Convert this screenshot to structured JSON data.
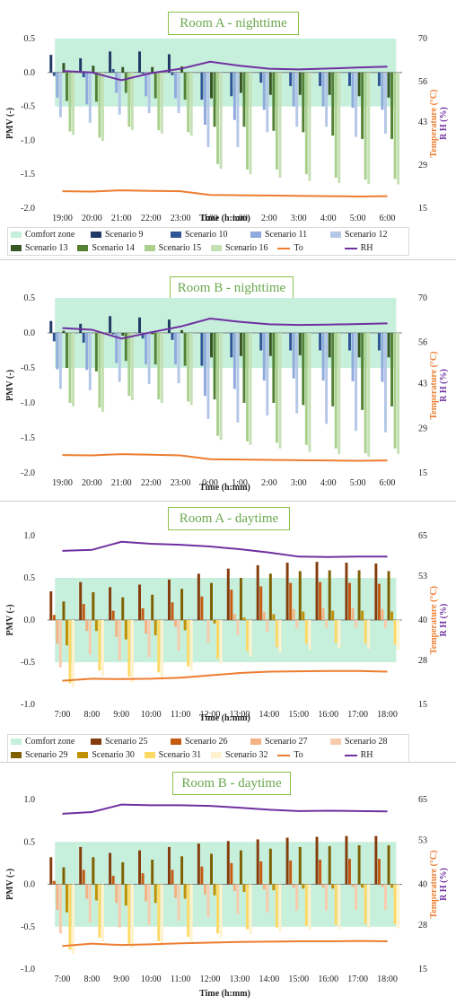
{
  "colors": {
    "night": [
      "#1f3864",
      "#2f5597",
      "#8faadc",
      "#b4c7e7",
      "#375623",
      "#548235",
      "#a9d18e",
      "#c5e0b4"
    ],
    "day": [
      "#843c0c",
      "#c55a11",
      "#f4b183",
      "#f8cbad",
      "#7f6000",
      "#bf9000",
      "#ffd966",
      "#fff2cc"
    ],
    "comfort": "#c6efdc",
    "to": "#ed7d31",
    "rh": "#7030a0"
  },
  "labels": {
    "y_left": "PMV (-)",
    "y_right_temp": "Temperature (°C)",
    "y_right_rh": "R H (%)",
    "x": "Time (h:mm)"
  },
  "legend_night": {
    "comfort": "Comfort zone",
    "series": [
      "Scenario 9",
      "Scenario 10",
      "Scenario 11",
      "Scenario 12",
      "Scenario 13",
      "Scenario 14",
      "Scenario 15",
      "Scenario 16"
    ],
    "to": "To",
    "rh": "RH"
  },
  "legend_day": {
    "comfort": "Comfort zone",
    "series": [
      "Scenario 25",
      "Scenario 26",
      "Scenario 27",
      "Scenario 28",
      "Scenario 29",
      "Scenario 30",
      "Scenario 31",
      "Scenario 32"
    ],
    "to": "To",
    "rh": "RH"
  },
  "chart_data": [
    {
      "type": "bar",
      "title": "Room A - nighttime",
      "categories": [
        "19:00",
        "20:00",
        "21:00",
        "22:00",
        "23:00",
        "0:00",
        "1:00",
        "2:00",
        "3:00",
        "4:00",
        "5:00",
        "6:00"
      ],
      "ylim": [
        -2.0,
        0.5
      ],
      "yticks": [
        "0.5",
        "0.0",
        "-0.5",
        "-1.0",
        "-1.5",
        "-2.0"
      ],
      "right_ylim": [
        15,
        70
      ],
      "right_ticks": [
        "70",
        "56",
        "43",
        "29",
        "15"
      ],
      "comfort_zone": [
        -0.5,
        0.5
      ],
      "series": [
        {
          "name": "Scenario 9",
          "values": [
            0.26,
            0.21,
            0.31,
            0.31,
            0.27,
            0.0,
            0.0,
            0.0,
            0.0,
            0.0,
            0.0,
            0.0
          ]
        },
        {
          "name": "Scenario 10",
          "values": [
            -0.05,
            -0.07,
            0.05,
            -0.02,
            -0.04,
            -0.4,
            -0.35,
            -0.15,
            -0.2,
            -0.2,
            -0.2,
            -0.2
          ]
        },
        {
          "name": "Scenario 11",
          "values": [
            -0.37,
            -0.47,
            -0.3,
            -0.35,
            -0.38,
            -0.77,
            -0.7,
            -0.55,
            -0.5,
            -0.5,
            -0.52,
            -0.55
          ]
        },
        {
          "name": "Scenario 12",
          "values": [
            -0.66,
            -0.74,
            -0.62,
            -0.6,
            -0.6,
            -1.1,
            -1.1,
            -0.88,
            -0.8,
            -0.8,
            -0.95,
            -0.9
          ]
        },
        {
          "name": "Scenario 13",
          "values": [
            0.14,
            0.1,
            0.08,
            0.08,
            0.09,
            -0.38,
            -0.3,
            -0.33,
            -0.33,
            -0.33,
            -0.35,
            -0.37
          ]
        },
        {
          "name": "Scenario 14",
          "values": [
            -0.42,
            -0.43,
            -0.3,
            -0.38,
            -0.4,
            -0.8,
            -0.8,
            -0.86,
            -0.88,
            -0.93,
            -0.98,
            -0.98
          ]
        },
        {
          "name": "Scenario 15",
          "values": [
            -0.87,
            -0.96,
            -0.8,
            -0.85,
            -0.88,
            -1.35,
            -1.43,
            -1.43,
            -1.5,
            -1.55,
            -1.58,
            -1.57
          ]
        },
        {
          "name": "Scenario 16",
          "values": [
            -0.92,
            -1.01,
            -0.85,
            -0.9,
            -0.93,
            -1.42,
            -1.5,
            -1.55,
            -1.6,
            -1.63,
            -1.64,
            -1.65
          ]
        }
      ],
      "to": [
        20.5,
        20.4,
        20.8,
        20.6,
        20.5,
        19.3,
        19.2,
        19.1,
        19.0,
        18.9,
        18.8,
        18.9
      ],
      "rh": [
        59.5,
        59.0,
        56.5,
        58.8,
        60.2,
        62.5,
        61.2,
        60.2,
        60.0,
        60.3,
        60.6,
        60.9
      ]
    },
    {
      "type": "bar",
      "title": "Room B - nighttime",
      "categories": [
        "19:00",
        "20:00",
        "21:00",
        "22:00",
        "23:00",
        "0:00",
        "1:00",
        "2:00",
        "3:00",
        "4:00",
        "5:00",
        "6:00"
      ],
      "ylim": [
        -2.0,
        0.5
      ],
      "yticks": [
        "0.5",
        "0.0",
        "-0.5",
        "-1.0",
        "-1.5",
        "-2.0"
      ],
      "right_ylim": [
        15,
        70
      ],
      "right_ticks": [
        "70",
        "56",
        "43",
        "29",
        "15"
      ],
      "comfort_zone": [
        -0.5,
        0.5
      ],
      "series": [
        {
          "name": "Scenario 9",
          "values": [
            0.17,
            0.13,
            0.24,
            0.22,
            0.19,
            0.0,
            0.0,
            0.0,
            0.0,
            0.0,
            0.0,
            0.0
          ]
        },
        {
          "name": "Scenario 10",
          "values": [
            -0.12,
            -0.14,
            -0.02,
            -0.08,
            -0.1,
            -0.47,
            -0.35,
            -0.25,
            -0.25,
            -0.25,
            -0.25,
            -0.25
          ]
        },
        {
          "name": "Scenario 11",
          "values": [
            -0.52,
            -0.53,
            -0.43,
            -0.45,
            -0.45,
            -0.9,
            -0.8,
            -0.68,
            -0.65,
            -0.68,
            -0.69,
            -0.7
          ]
        },
        {
          "name": "Scenario 12",
          "values": [
            -0.8,
            -0.82,
            -0.7,
            -0.73,
            -0.72,
            -1.23,
            -1.28,
            -1.18,
            -1.15,
            -1.3,
            -1.4,
            -1.42
          ]
        },
        {
          "name": "Scenario 13",
          "values": [
            0.03,
            0.0,
            -0.04,
            -0.02,
            0.04,
            -0.35,
            -0.33,
            -0.33,
            -0.32,
            -0.35,
            -0.35,
            -0.35
          ]
        },
        {
          "name": "Scenario 14",
          "values": [
            -0.5,
            -0.55,
            -0.4,
            -0.45,
            -0.47,
            -0.95,
            -1.0,
            -1.0,
            -1.03,
            -1.05,
            -1.1,
            -1.05
          ]
        },
        {
          "name": "Scenario 15",
          "values": [
            -1.0,
            -1.07,
            -0.9,
            -0.95,
            -0.98,
            -1.47,
            -1.55,
            -1.57,
            -1.6,
            -1.65,
            -1.72,
            -1.65
          ]
        },
        {
          "name": "Scenario 16",
          "values": [
            -1.05,
            -1.13,
            -0.96,
            -1.0,
            -1.03,
            -1.53,
            -1.6,
            -1.65,
            -1.7,
            -1.73,
            -1.77,
            -1.73
          ]
        }
      ],
      "to": [
        20.6,
        20.5,
        20.9,
        20.7,
        20.5,
        19.3,
        19.2,
        19.1,
        19.0,
        18.9,
        18.8,
        18.9
      ],
      "rh": [
        60.5,
        60.0,
        57.2,
        59.2,
        61.0,
        63.5,
        62.5,
        61.7,
        61.5,
        61.6,
        61.8,
        62.0
      ]
    },
    {
      "type": "bar",
      "title": "Room A - daytime",
      "categories": [
        "7:00",
        "8:00",
        "9:00",
        "10:00",
        "11:00",
        "12:00",
        "13:00",
        "14:00",
        "15:00",
        "16:00",
        "17:00",
        "18:00"
      ],
      "ylim": [
        -1.0,
        1.0
      ],
      "yticks": [
        "1.0",
        "0.5",
        "0.0",
        "-0.5",
        "-1.0"
      ],
      "right_ylim": [
        15,
        65
      ],
      "right_ticks": [
        "65",
        "53",
        "40",
        "28",
        "15"
      ],
      "comfort_zone": [
        -0.5,
        0.5
      ],
      "series": [
        {
          "name": "Scenario 25",
          "values": [
            0.34,
            0.45,
            0.39,
            0.42,
            0.48,
            0.55,
            0.61,
            0.65,
            0.68,
            0.69,
            0.68,
            0.67
          ]
        },
        {
          "name": "Scenario 26",
          "values": [
            0.06,
            0.19,
            0.11,
            0.14,
            0.21,
            0.28,
            0.36,
            0.4,
            0.44,
            0.45,
            0.44,
            0.43
          ]
        },
        {
          "name": "Scenario 27",
          "values": [
            -0.28,
            -0.13,
            -0.2,
            -0.16,
            -0.08,
            0.0,
            0.07,
            0.1,
            0.13,
            0.14,
            0.14,
            0.13
          ]
        },
        {
          "name": "Scenario 28",
          "values": [
            -0.56,
            -0.41,
            -0.48,
            -0.44,
            -0.36,
            -0.27,
            -0.18,
            -0.14,
            -0.1,
            -0.09,
            -0.09,
            -0.1
          ]
        },
        {
          "name": "Scenario 29",
          "values": [
            0.22,
            0.33,
            0.27,
            0.3,
            0.37,
            0.44,
            0.5,
            0.55,
            0.58,
            0.59,
            0.59,
            0.58
          ]
        },
        {
          "name": "Scenario 30",
          "values": [
            -0.3,
            -0.13,
            -0.23,
            -0.18,
            -0.12,
            -0.04,
            0.03,
            0.07,
            0.1,
            0.11,
            0.11,
            0.1
          ]
        },
        {
          "name": "Scenario 31",
          "values": [
            -0.75,
            -0.6,
            -0.67,
            -0.62,
            -0.55,
            -0.46,
            -0.37,
            -0.32,
            -0.28,
            -0.27,
            -0.28,
            -0.29
          ]
        },
        {
          "name": "Scenario 32",
          "values": [
            -0.8,
            -0.66,
            -0.74,
            -0.69,
            -0.6,
            -0.52,
            -0.43,
            -0.38,
            -0.35,
            -0.33,
            -0.34,
            -0.35
          ]
        }
      ],
      "to": [
        22.0,
        22.6,
        22.5,
        22.6,
        22.9,
        23.6,
        24.3,
        24.7,
        24.8,
        24.9,
        24.9,
        24.7
      ],
      "rh": [
        60.5,
        60.8,
        63.2,
        62.6,
        62.3,
        61.8,
        61.0,
        60.0,
        58.8,
        58.7,
        58.8,
        58.8
      ]
    },
    {
      "type": "bar",
      "title": "Room B - daytime",
      "categories": [
        "7:00",
        "8:00",
        "9:00",
        "10:00",
        "11:00",
        "12:00",
        "13:00",
        "14:00",
        "15:00",
        "16:00",
        "17:00",
        "18:00"
      ],
      "ylim": [
        -1.0,
        1.0
      ],
      "yticks": [
        "1.0",
        "0.5",
        "0.0",
        "-0.5",
        "-1.0"
      ],
      "right_ylim": [
        15,
        65
      ],
      "right_ticks": [
        "65",
        "53",
        "40",
        "28",
        "15"
      ],
      "comfort_zone": [
        -0.5,
        0.5
      ],
      "series": [
        {
          "name": "Scenario 25",
          "values": [
            0.32,
            0.44,
            0.37,
            0.4,
            0.44,
            0.48,
            0.51,
            0.53,
            0.55,
            0.56,
            0.57,
            0.57
          ]
        },
        {
          "name": "Scenario 26",
          "values": [
            0.04,
            0.17,
            0.1,
            0.13,
            0.17,
            0.21,
            0.25,
            0.27,
            0.28,
            0.29,
            0.3,
            0.3
          ]
        },
        {
          "name": "Scenario 27",
          "values": [
            -0.3,
            -0.17,
            -0.22,
            -0.2,
            -0.16,
            -0.12,
            -0.08,
            -0.06,
            -0.04,
            -0.04,
            -0.03,
            -0.03
          ]
        },
        {
          "name": "Scenario 28",
          "values": [
            -0.58,
            -0.45,
            -0.51,
            -0.48,
            -0.43,
            -0.39,
            -0.35,
            -0.33,
            -0.31,
            -0.31,
            -0.3,
            -0.3
          ]
        },
        {
          "name": "Scenario 29",
          "values": [
            0.2,
            0.32,
            0.26,
            0.29,
            0.33,
            0.36,
            0.4,
            0.42,
            0.44,
            0.45,
            0.46,
            0.46
          ]
        },
        {
          "name": "Scenario 30",
          "values": [
            -0.33,
            -0.19,
            -0.25,
            -0.22,
            -0.17,
            -0.13,
            -0.09,
            -0.07,
            -0.05,
            -0.05,
            -0.04,
            -0.04
          ]
        },
        {
          "name": "Scenario 31",
          "values": [
            -0.77,
            -0.63,
            -0.7,
            -0.67,
            -0.62,
            -0.58,
            -0.53,
            -0.51,
            -0.49,
            -0.48,
            -0.47,
            -0.47
          ]
        },
        {
          "name": "Scenario 32",
          "values": [
            -0.82,
            -0.68,
            -0.75,
            -0.72,
            -0.67,
            -0.63,
            -0.59,
            -0.56,
            -0.54,
            -0.53,
            -0.52,
            -0.52
          ]
        }
      ],
      "to": [
        21.8,
        22.5,
        22.1,
        22.3,
        22.6,
        22.8,
        23.0,
        23.1,
        23.2,
        23.2,
        23.3,
        23.2
      ],
      "rh": [
        60.8,
        61.3,
        63.5,
        63.3,
        63.3,
        63.1,
        62.6,
        62.0,
        61.6,
        61.7,
        61.6,
        61.5
      ]
    }
  ]
}
